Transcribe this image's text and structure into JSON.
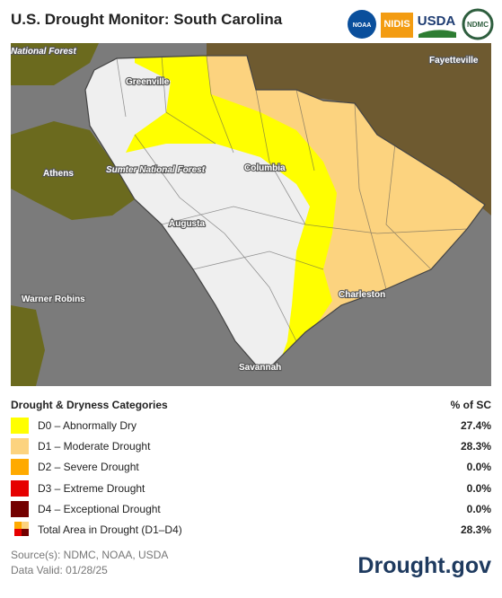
{
  "header": {
    "title": "U.S. Drought Monitor: South Carolina",
    "logos": [
      "NOAA",
      "NIDIS",
      "USDA",
      "NDMC"
    ]
  },
  "map": {
    "labels": [
      "National Forest",
      "Greenville",
      "Fayetteville",
      "Athens",
      "Sumter National Forest",
      "Columbia",
      "Augusta",
      "Charleston",
      "Warner Robins",
      "Savannah"
    ]
  },
  "legend": {
    "heading": "Drought & Dryness Categories",
    "column": "% of SC",
    "rows": [
      {
        "label": "D0 – Abnormally Dry",
        "value": "27.4%",
        "color": "#ffff00"
      },
      {
        "label": "D1 – Moderate Drought",
        "value": "28.3%",
        "color": "#fcd37f"
      },
      {
        "label": "D2 – Severe Drought",
        "value": "0.0%",
        "color": "#ffaa00"
      },
      {
        "label": "D3 – Extreme Drought",
        "value": "0.0%",
        "color": "#e60000"
      },
      {
        "label": "D4 – Exceptional Drought",
        "value": "0.0%",
        "color": "#730000"
      }
    ],
    "total": {
      "label": "Total Area in Drought (D1–D4)",
      "value": "28.3%"
    }
  },
  "footer": {
    "sources": "Source(s): NDMC, NOAA, USDA",
    "valid": "Data Valid: 01/28/25",
    "brand": "Drought.gov"
  }
}
